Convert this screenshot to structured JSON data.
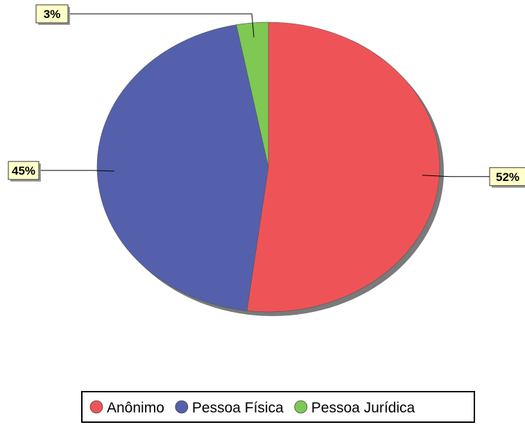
{
  "chart_data": {
    "type": "pie",
    "title": "",
    "categories": [
      "Anônimo",
      "Pessoa Física",
      "Pessoa Jurídica"
    ],
    "values": [
      52,
      45,
      3
    ],
    "data_labels": [
      "52%",
      "45%",
      "3%"
    ],
    "colors": [
      "#ee5457",
      "#5460ac",
      "#7ec853"
    ],
    "legend": {
      "placement": "bottom",
      "entries": [
        "Anônimo",
        "Pessoa Física",
        "Pessoa Jurídica"
      ]
    }
  }
}
